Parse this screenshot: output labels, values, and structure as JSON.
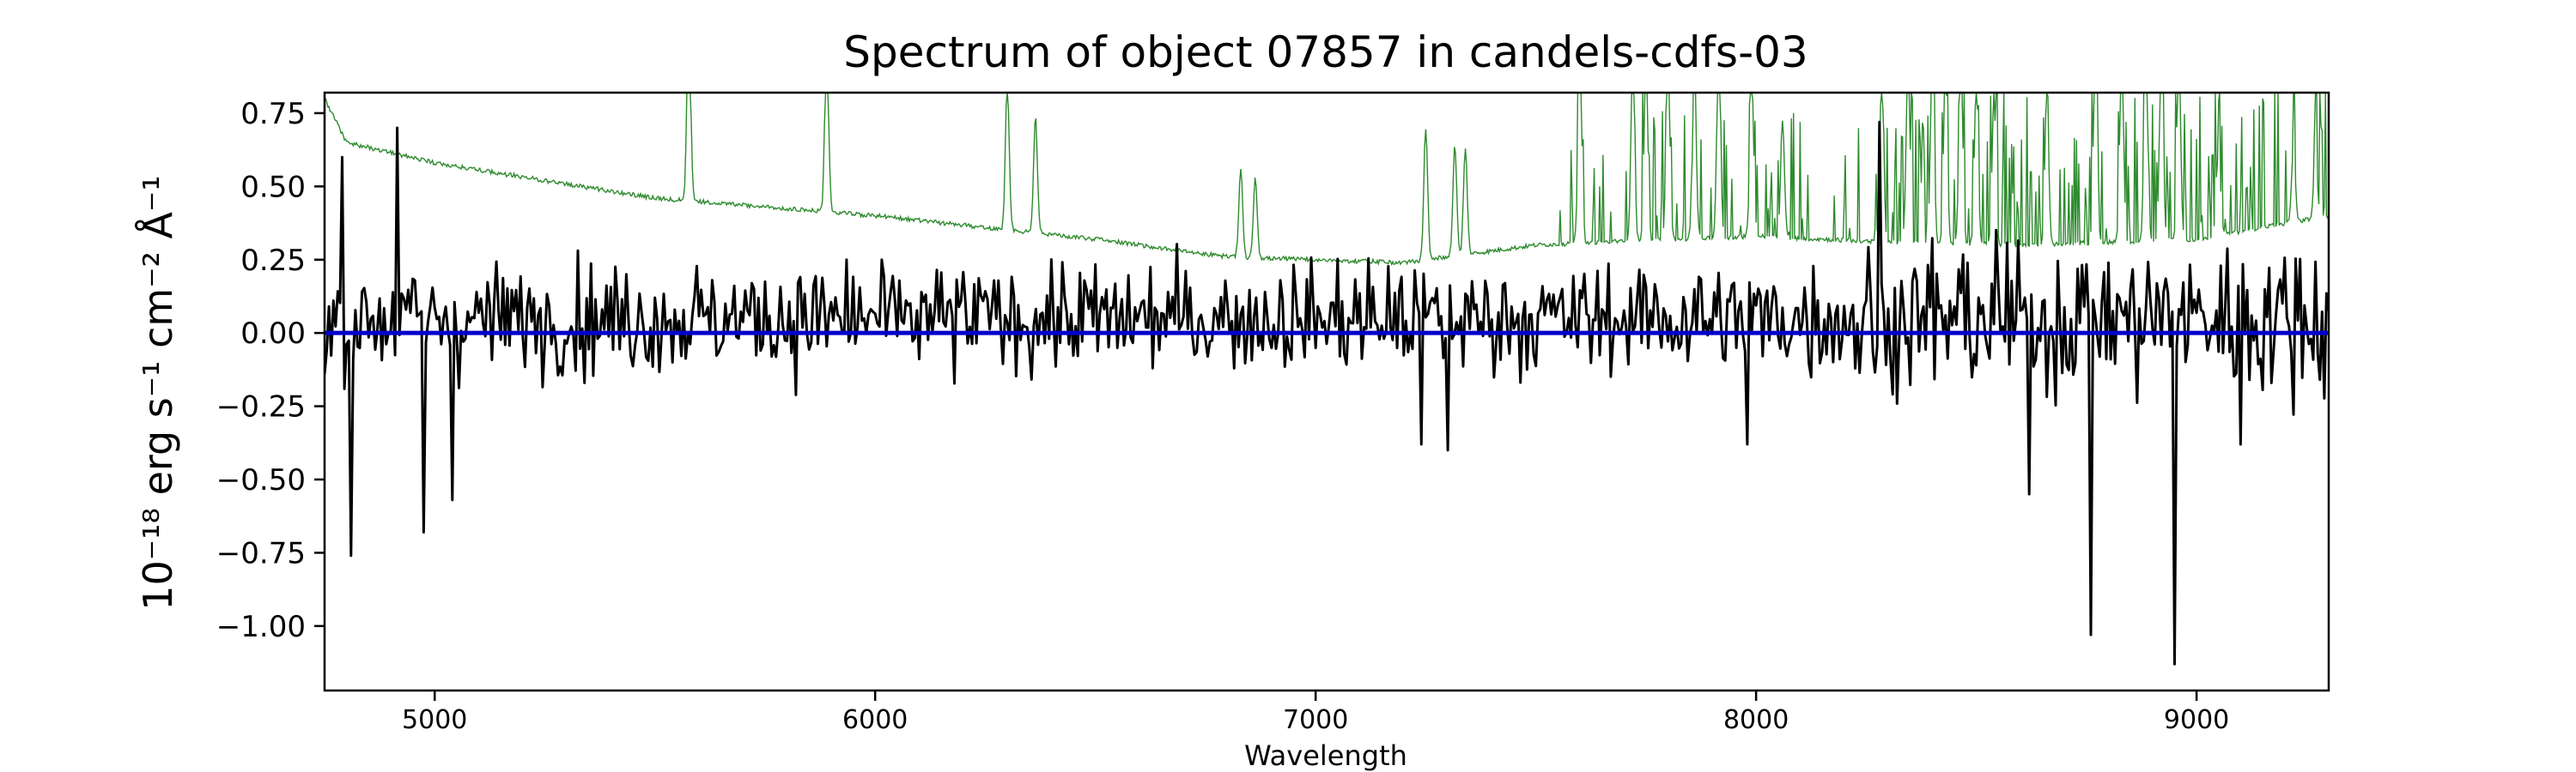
{
  "chart_data": {
    "type": "line",
    "title": "Spectrum of object 07857 in candels-cdfs-03",
    "xlabel": "Wavelength",
    "ylabel": "10⁻¹⁸ erg s⁻¹ cm⁻² Å⁻¹",
    "xlim": [
      4750,
      9300
    ],
    "ylim": [
      -1.22,
      0.82
    ],
    "x_ticks": [
      5000,
      6000,
      7000,
      8000,
      9000
    ],
    "x_tick_labels": [
      "5000",
      "6000",
      "7000",
      "8000",
      "9000"
    ],
    "y_ticks": [
      0.75,
      0.5,
      0.25,
      0.0,
      -0.25,
      -0.5,
      -0.75,
      -1.0
    ],
    "y_tick_labels": [
      "0.75",
      "0.50",
      "0.25",
      "0.00",
      "−0.25",
      "−0.50",
      "−0.75",
      "−1.00"
    ],
    "grid": false,
    "series": [
      {
        "role": "error",
        "color": "#2e8b2e",
        "baseline": [
          [
            4750,
            0.8
          ],
          [
            4800,
            0.65
          ],
          [
            5000,
            0.58
          ],
          [
            5500,
            0.46
          ],
          [
            6000,
            0.4
          ],
          [
            6500,
            0.32
          ],
          [
            6800,
            0.26
          ],
          [
            7000,
            0.25
          ],
          [
            7200,
            0.24
          ],
          [
            7500,
            0.3
          ],
          [
            8000,
            0.33
          ],
          [
            8300,
            0.31
          ],
          [
            8600,
            0.3
          ],
          [
            9000,
            0.32
          ],
          [
            9300,
            0.4
          ]
        ],
        "emission_lines": [
          [
            5577,
            0.95
          ],
          [
            5890,
            0.9
          ],
          [
            6300,
            0.8
          ],
          [
            6364,
            0.7
          ],
          [
            6830,
            0.6
          ],
          [
            6863,
            0.58
          ],
          [
            7250,
            0.75
          ],
          [
            7316,
            0.68
          ],
          [
            7340,
            0.66
          ],
          [
            7600,
            0.95
          ],
          [
            7720,
            0.9
          ],
          [
            7750,
            0.9
          ],
          [
            7800,
            0.95
          ],
          [
            7860,
            0.85
          ],
          [
            7915,
            0.95
          ],
          [
            7990,
            0.85
          ],
          [
            8060,
            0.7
          ],
          [
            8285,
            0.85
          ],
          [
            8345,
            0.95
          ],
          [
            8400,
            0.95
          ],
          [
            8430,
            0.9
          ],
          [
            8465,
            0.95
          ],
          [
            8500,
            0.85
          ],
          [
            8540,
            0.8
          ],
          [
            8660,
            0.82
          ],
          [
            8770,
            0.95
          ],
          [
            8830,
            0.95
          ],
          [
            8885,
            0.95
          ],
          [
            8920,
            0.95
          ],
          [
            8960,
            0.85
          ],
          [
            9050,
            0.6
          ],
          [
            9220,
            0.55
          ],
          [
            9270,
            0.5
          ]
        ],
        "tick_to_edge": [
          "upper bound at 0.82 clip"
        ]
      },
      {
        "role": "flux",
        "color": "#000000",
        "notable_points": [
          [
            4790,
            0.6
          ],
          [
            4810,
            -0.76
          ],
          [
            4915,
            0.7
          ],
          [
            4975,
            -0.68
          ],
          [
            5040,
            -0.57
          ],
          [
            7240,
            -0.38
          ],
          [
            7300,
            -0.4
          ],
          [
            7980,
            -0.38
          ],
          [
            8280,
            0.72
          ],
          [
            8620,
            -0.55
          ],
          [
            8760,
            -1.03
          ],
          [
            8950,
            -1.13
          ],
          [
            9100,
            -0.38
          ]
        ]
      },
      {
        "role": "zero",
        "color": "#0000cc",
        "x": [
          4750,
          9300
        ],
        "y": [
          0.0,
          0.0
        ]
      }
    ]
  }
}
